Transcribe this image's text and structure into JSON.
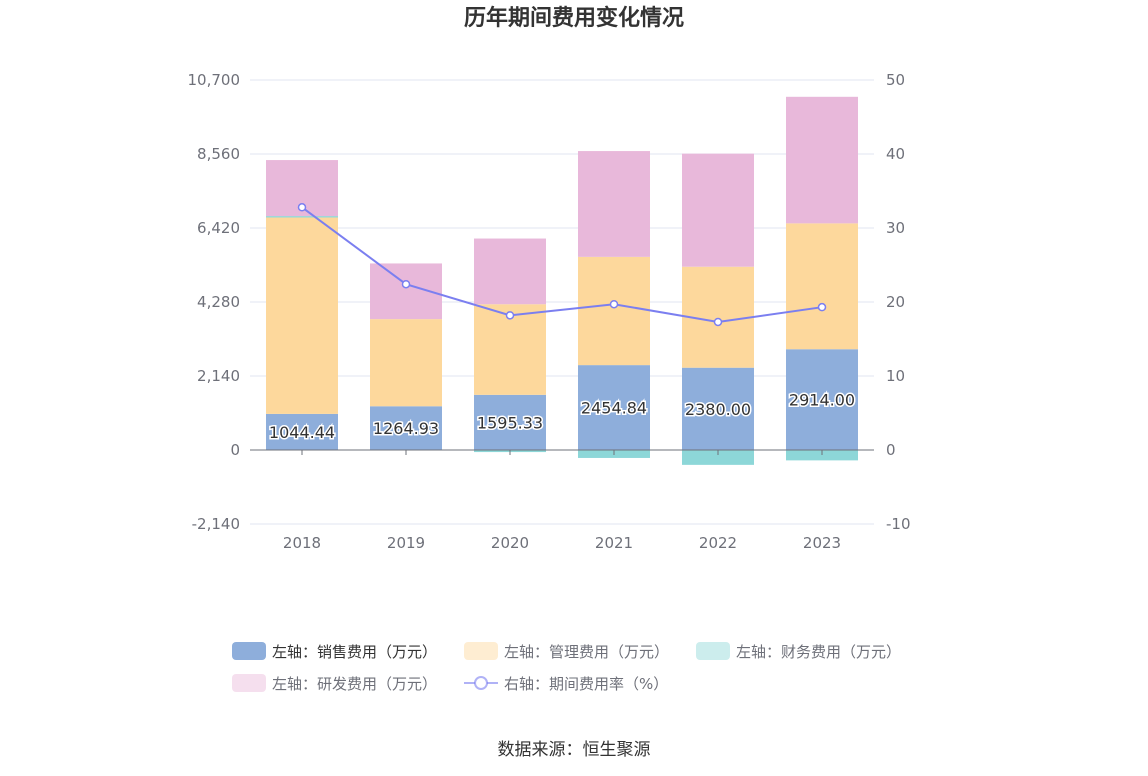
{
  "chart_data": {
    "type": "bar",
    "title": "历年期间费用变化情况",
    "categories": [
      "2018",
      "2019",
      "2020",
      "2021",
      "2022",
      "2023"
    ],
    "left_axis": {
      "ylim": [
        -2140,
        10700
      ],
      "ticks": [
        -2140,
        0,
        2140,
        4280,
        6420,
        8560,
        10700
      ],
      "tick_labels": [
        "-2,140",
        "0",
        "2,140",
        "4,280",
        "6,420",
        "8,560",
        "10,700"
      ]
    },
    "right_axis": {
      "ylim": [
        -10,
        50
      ],
      "ticks": [
        -10,
        0,
        10,
        20,
        30,
        40,
        50
      ],
      "tick_labels": [
        "-10",
        "0",
        "10",
        "20",
        "30",
        "40",
        "50"
      ]
    },
    "grid": true,
    "legend_position": "bottom",
    "series": [
      {
        "name": "左轴：销售费用（万元）",
        "type": "bar",
        "stack": true,
        "axis": "left",
        "color": "#8eaedb",
        "values": [
          1044.44,
          1264.93,
          1595.33,
          2454.84,
          2380.0,
          2914.0
        ],
        "labels": [
          "1044.44",
          "1264.93",
          "1595.33",
          "2454.84",
          "2380.00",
          "2914.00"
        ]
      },
      {
        "name": "左轴：管理费用（万元）",
        "type": "bar",
        "stack": true,
        "axis": "left",
        "color": "#fdd89c",
        "values": [
          5680,
          2520,
          2620,
          3130,
          2920,
          3640
        ]
      },
      {
        "name": "左轴：财务费用（万元）",
        "type": "bar",
        "stack": true,
        "axis": "left",
        "color": "#8dd7d8",
        "values": [
          40,
          -10,
          -60,
          -230,
          -430,
          -300
        ]
      },
      {
        "name": "左轴：研发费用（万元）",
        "type": "bar",
        "stack": true,
        "axis": "left",
        "color": "#e8b8da",
        "values": [
          1620,
          1610,
          1900,
          3060,
          3270,
          3660
        ]
      },
      {
        "name": "右轴：期间费用率（%）",
        "type": "line",
        "axis": "right",
        "color": "#7b7ff0",
        "values": [
          32.8,
          22.4,
          18.2,
          19.7,
          17.3,
          19.3
        ]
      }
    ]
  },
  "source": "数据来源：恒生聚源"
}
